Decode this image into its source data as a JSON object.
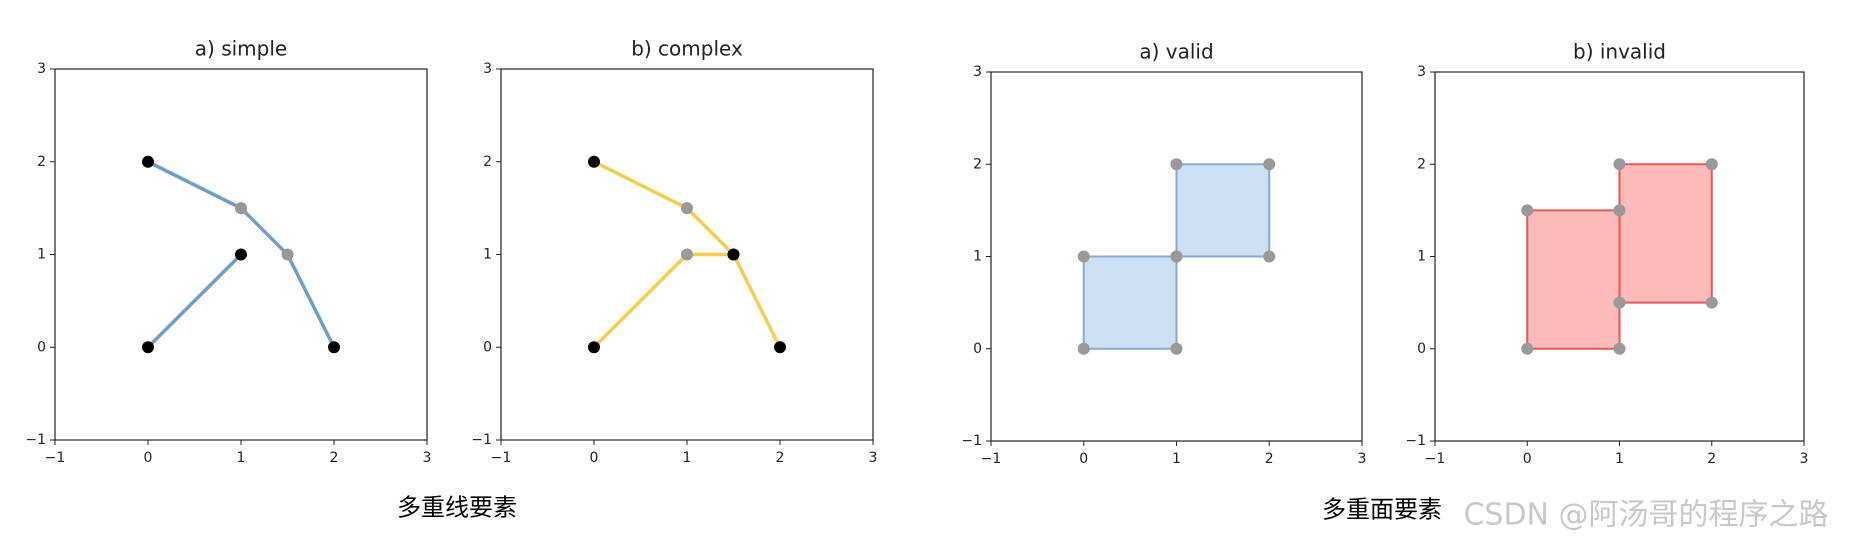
{
  "chart_data": [
    {
      "type": "line",
      "title": "a) simple",
      "color": "#6f9fc8",
      "endpoint_color": "#000000",
      "vertex_color": "#999999",
      "xlim": [
        -1,
        3
      ],
      "ylim": [
        -1,
        3
      ],
      "xticks": [
        {
          "value": -1,
          "label": "−1"
        },
        0,
        1,
        2,
        3
      ],
      "yticks": [
        {
          "value": -1,
          "label": "−1"
        },
        0,
        1,
        2,
        3
      ],
      "series": [
        {
          "x": [
            0,
            1
          ],
          "values": [
            0,
            1
          ]
        },
        {
          "x": [
            0,
            1,
            1.5,
            2
          ],
          "values": [
            2,
            1.5,
            1,
            0
          ]
        }
      ]
    },
    {
      "type": "line",
      "title": "b) complex",
      "color": "#f5cd50",
      "endpoint_color": "#000000",
      "vertex_color": "#999999",
      "xlim": [
        -1,
        3
      ],
      "ylim": [
        -1,
        3
      ],
      "xticks": [
        {
          "value": -1,
          "label": "−1"
        },
        0,
        1,
        2,
        3
      ],
      "yticks": [
        {
          "value": -1,
          "label": "−1"
        },
        0,
        1,
        2,
        3
      ],
      "series": [
        {
          "x": [
            0,
            1,
            1.5
          ],
          "values": [
            0,
            1,
            1
          ]
        },
        {
          "x": [
            0,
            1,
            1.5,
            2
          ],
          "values": [
            2,
            1.5,
            1,
            0
          ]
        }
      ]
    },
    {
      "type": "polygon",
      "title": "a) valid",
      "color": "#cddff0",
      "edge_color": "#85a9cf",
      "vertex_color": "#999999",
      "xlim": [
        -1,
        3
      ],
      "ylim": [
        -1,
        3
      ],
      "xticks": [
        {
          "value": -1,
          "label": "−1"
        },
        0,
        1,
        2,
        3
      ],
      "yticks": [
        {
          "value": -1,
          "label": "−1"
        },
        0,
        1,
        2,
        3
      ],
      "series": [
        {
          "x": [
            0,
            1,
            1,
            0
          ],
          "values": [
            0,
            0,
            1,
            1
          ]
        },
        {
          "x": [
            1,
            2,
            2,
            1
          ],
          "values": [
            1,
            1,
            2,
            2
          ]
        }
      ]
    },
    {
      "type": "polygon",
      "title": "b) invalid",
      "color": "#fdbaba",
      "edge_color": "#e05a5a",
      "vertex_color": "#999999",
      "xlim": [
        -1,
        3
      ],
      "ylim": [
        -1,
        3
      ],
      "xticks": [
        {
          "value": -1,
          "label": "−1"
        },
        0,
        1,
        2,
        3
      ],
      "yticks": [
        {
          "value": -1,
          "label": "−1"
        },
        0,
        1,
        2,
        3
      ],
      "series": [
        {
          "x": [
            0,
            1,
            1,
            0
          ],
          "values": [
            0,
            0,
            1.5,
            1.5
          ]
        },
        {
          "x": [
            1,
            2,
            2,
            1
          ],
          "values": [
            0.5,
            0.5,
            2,
            2
          ]
        }
      ]
    }
  ],
  "captions": [
    "多重线要素",
    "多重面要素"
  ],
  "watermark": "CSDN @阿汤哥的程序之路"
}
